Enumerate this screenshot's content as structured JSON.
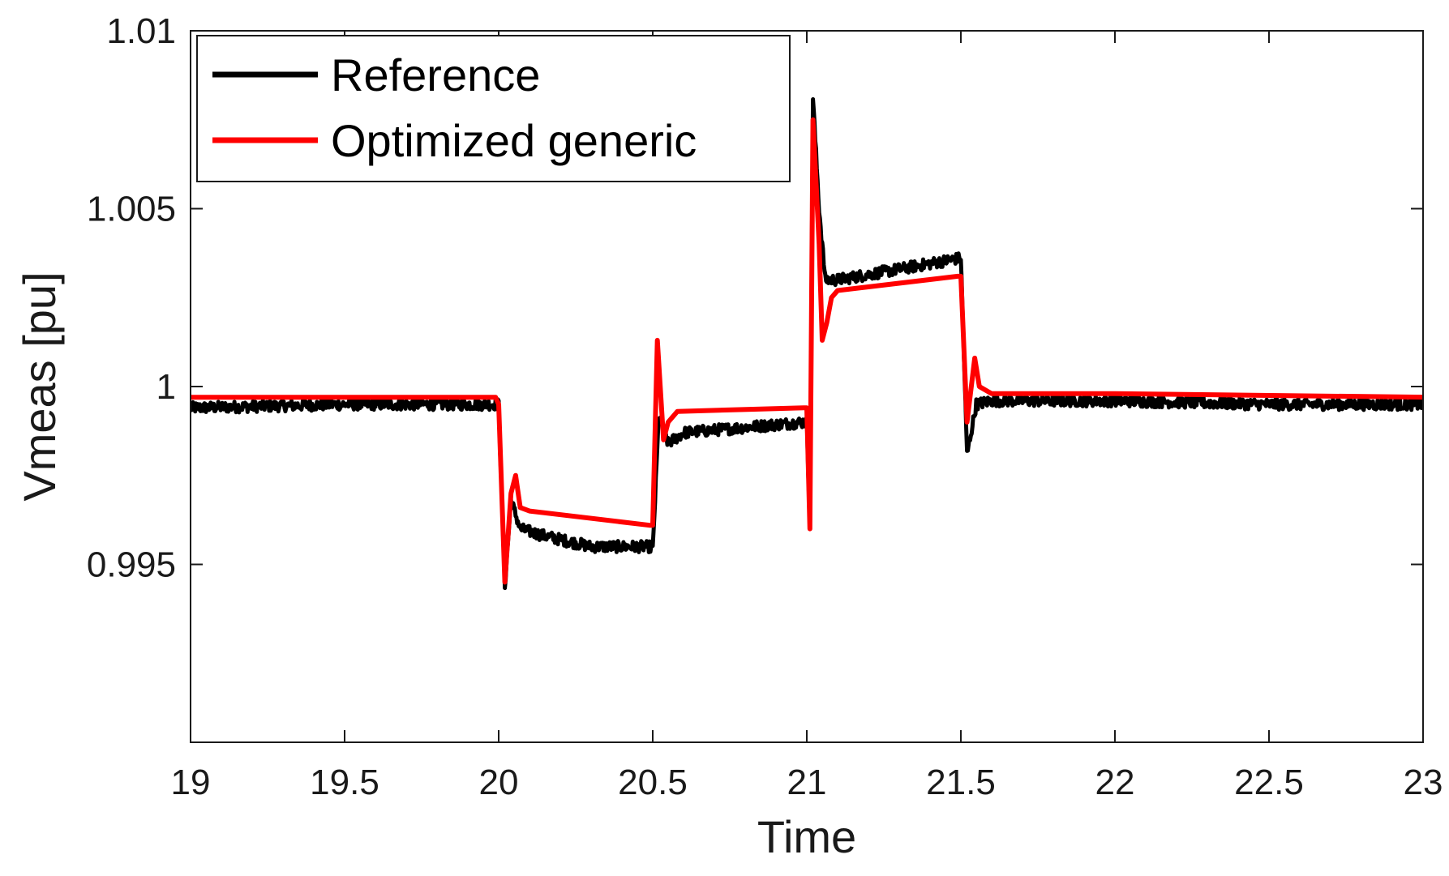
{
  "chart_data": {
    "type": "line",
    "title": "",
    "xlabel": "Time",
    "ylabel": "Vmeas [pu]",
    "xlim": [
      19,
      23
    ],
    "ylim": [
      0.99,
      1.01
    ],
    "xticks": [
      19,
      19.5,
      20,
      20.5,
      21,
      21.5,
      22,
      22.5,
      23
    ],
    "xtick_labels": [
      "19",
      "19.5",
      "20",
      "20.5",
      "21",
      "21.5",
      "22",
      "22.5",
      "23"
    ],
    "yticks": [
      0.995,
      1,
      1.005,
      1.01
    ],
    "ytick_labels": [
      "0.995",
      "1",
      "1.005",
      "1.01"
    ],
    "grid": false,
    "legend_position": "top-left",
    "series": [
      {
        "name": "Reference",
        "color": "#000000",
        "noise": 0.00016,
        "points": [
          [
            19.0,
            0.9994
          ],
          [
            19.5,
            0.9995
          ],
          [
            19.99,
            0.9995
          ],
          [
            20.0,
            0.9995
          ],
          [
            20.02,
            0.9944
          ],
          [
            20.04,
            0.9968
          ],
          [
            20.07,
            0.996
          ],
          [
            20.15,
            0.9958
          ],
          [
            20.3,
            0.9955
          ],
          [
            20.49,
            0.9955
          ],
          [
            20.5,
            0.9954
          ],
          [
            20.52,
            0.9992
          ],
          [
            20.55,
            0.9984
          ],
          [
            20.6,
            0.9987
          ],
          [
            20.99,
            0.999
          ],
          [
            21.0,
            0.999
          ],
          [
            21.01,
            0.9962
          ],
          [
            21.02,
            1.0081
          ],
          [
            21.04,
            1.005
          ],
          [
            21.06,
            1.003
          ],
          [
            21.1,
            1.003
          ],
          [
            21.3,
            1.0033
          ],
          [
            21.49,
            1.0036
          ],
          [
            21.5,
            1.0036
          ],
          [
            21.52,
            0.9981
          ],
          [
            21.55,
            0.9995
          ],
          [
            21.6,
            0.9996
          ],
          [
            22.0,
            0.9996
          ],
          [
            22.5,
            0.9995
          ],
          [
            23.02,
            0.9995
          ]
        ]
      },
      {
        "name": "Optimized generic",
        "color": "#ff0000",
        "noise": 0,
        "points": [
          [
            19.0,
            0.9997
          ],
          [
            19.99,
            0.9997
          ],
          [
            20.0,
            0.9995
          ],
          [
            20.02,
            0.9945
          ],
          [
            20.04,
            0.997
          ],
          [
            20.055,
            0.9975
          ],
          [
            20.07,
            0.9966
          ],
          [
            20.1,
            0.9965
          ],
          [
            20.49,
            0.9961
          ],
          [
            20.5,
            0.9961
          ],
          [
            20.515,
            1.0013
          ],
          [
            20.535,
            0.9985
          ],
          [
            20.55,
            0.999
          ],
          [
            20.58,
            0.9993
          ],
          [
            20.99,
            0.9994
          ],
          [
            21.0,
            0.9994
          ],
          [
            21.01,
            0.996
          ],
          [
            21.02,
            1.0075
          ],
          [
            21.04,
            1.004
          ],
          [
            21.05,
            1.0013
          ],
          [
            21.065,
            1.0018
          ],
          [
            21.08,
            1.0025
          ],
          [
            21.1,
            1.0027
          ],
          [
            21.49,
            1.0031
          ],
          [
            21.5,
            1.0031
          ],
          [
            21.52,
            0.999
          ],
          [
            21.545,
            1.0008
          ],
          [
            21.56,
            1.0
          ],
          [
            21.6,
            0.9998
          ],
          [
            22.0,
            0.9998
          ],
          [
            23.02,
            0.9997
          ]
        ]
      }
    ]
  }
}
